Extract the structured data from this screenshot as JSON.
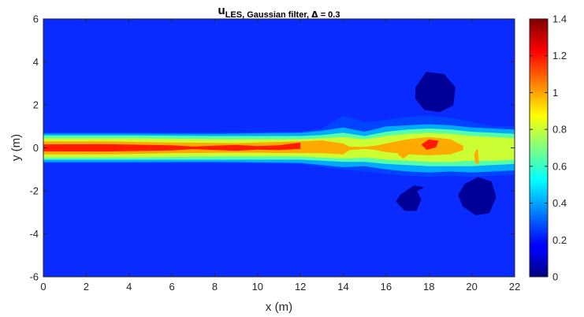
{
  "chart_data": {
    "type": "heatmap",
    "subtype": "filled-contour",
    "title": "u_{LES, Gaussian filter, Δ = 0.3}",
    "title_main": "u",
    "title_sub": "LES, Gaussian filter, ",
    "title_tail": " = 0.3",
    "title_delta": "Δ",
    "xlabel": "x (m)",
    "ylabel": "y (m)",
    "xlim": [
      0,
      22
    ],
    "ylim": [
      -6,
      6
    ],
    "x_ticks": [
      "0",
      "2",
      "4",
      "6",
      "8",
      "10",
      "12",
      "14",
      "16",
      "18",
      "20",
      "22"
    ],
    "y_ticks": [
      "-6",
      "-4",
      "-2",
      "0",
      "2",
      "4",
      "6"
    ],
    "colorbar": {
      "colormap": "jet",
      "range": [
        0,
        1.4
      ],
      "ticks": [
        "0",
        "0.2",
        "0.4",
        "0.6",
        "0.8",
        "1",
        "1.2",
        "1.4"
      ]
    },
    "background_level": 0.2,
    "levels": [
      {
        "name": "level-0.3",
        "value": 0.3,
        "color": "#0044ff",
        "top": [
          [
            0,
            0.72
          ],
          [
            4,
            0.72
          ],
          [
            8,
            0.72
          ],
          [
            12,
            0.75
          ],
          [
            13,
            0.9
          ],
          [
            14,
            1.5
          ],
          [
            15,
            1.2
          ],
          [
            16,
            1.3
          ],
          [
            17,
            1.45
          ],
          [
            18,
            1.5
          ],
          [
            19,
            1.4
          ],
          [
            20,
            1.2
          ],
          [
            21,
            1.0
          ],
          [
            22,
            1.0
          ]
        ],
        "bottom": [
          [
            0,
            -0.72
          ],
          [
            4,
            -0.72
          ],
          [
            8,
            -0.72
          ],
          [
            12,
            -0.75
          ],
          [
            13,
            -0.9
          ],
          [
            14,
            -1.0
          ],
          [
            15,
            -1.1
          ],
          [
            16,
            -1.2
          ],
          [
            17,
            -1.3
          ],
          [
            18,
            -1.35
          ],
          [
            19,
            -1.3
          ],
          [
            20,
            -1.35
          ],
          [
            21,
            -1.3
          ],
          [
            22,
            -1.25
          ]
        ]
      },
      {
        "name": "level-0.5",
        "value": 0.5,
        "color": "#00aaff",
        "top": [
          [
            0,
            0.66
          ],
          [
            4,
            0.66
          ],
          [
            8,
            0.65
          ],
          [
            12,
            0.7
          ],
          [
            13,
            0.8
          ],
          [
            14,
            0.95
          ],
          [
            15,
            0.75
          ],
          [
            16,
            1.0
          ],
          [
            17,
            1.05
          ],
          [
            18,
            1.1
          ],
          [
            19,
            1.05
          ],
          [
            20,
            0.95
          ],
          [
            21,
            0.9
          ],
          [
            22,
            0.85
          ]
        ],
        "bottom": [
          [
            0,
            -0.66
          ],
          [
            4,
            -0.66
          ],
          [
            8,
            -0.65
          ],
          [
            12,
            -0.7
          ],
          [
            13,
            -0.8
          ],
          [
            14,
            -0.9
          ],
          [
            15,
            -0.85
          ],
          [
            16,
            -1.0
          ],
          [
            17,
            -1.1
          ],
          [
            18,
            -1.15
          ],
          [
            19,
            -1.1
          ],
          [
            20,
            -1.15
          ],
          [
            21,
            -1.1
          ],
          [
            22,
            -1.05
          ]
        ]
      },
      {
        "name": "level-0.7",
        "value": 0.7,
        "color": "#55ffaa",
        "top": [
          [
            0,
            0.58
          ],
          [
            4,
            0.58
          ],
          [
            8,
            0.55
          ],
          [
            12,
            0.55
          ],
          [
            13,
            0.6
          ],
          [
            14,
            0.7
          ],
          [
            15,
            0.55
          ],
          [
            16,
            0.75
          ],
          [
            17,
            0.85
          ],
          [
            18,
            0.9
          ],
          [
            19,
            0.85
          ],
          [
            20,
            0.75
          ],
          [
            21,
            0.7
          ],
          [
            22,
            0.65
          ]
        ],
        "bottom": [
          [
            0,
            -0.55
          ],
          [
            4,
            -0.55
          ],
          [
            8,
            -0.55
          ],
          [
            12,
            -0.55
          ],
          [
            13,
            -0.6
          ],
          [
            14,
            -0.65
          ],
          [
            15,
            -0.65
          ],
          [
            16,
            -0.75
          ],
          [
            17,
            -0.8
          ],
          [
            18,
            -0.85
          ],
          [
            19,
            -0.85
          ],
          [
            20,
            -0.85
          ],
          [
            21,
            -0.8
          ],
          [
            22,
            -0.75
          ]
        ]
      },
      {
        "name": "level-0.85",
        "value": 0.85,
        "color": "#ccff33",
        "top": [
          [
            0,
            0.45
          ],
          [
            4,
            0.45
          ],
          [
            8,
            0.4
          ],
          [
            12,
            0.4
          ],
          [
            13,
            0.45
          ],
          [
            14,
            0.5
          ],
          [
            15,
            0.4
          ],
          [
            16,
            0.55
          ],
          [
            17,
            0.65
          ],
          [
            18,
            0.7
          ],
          [
            19,
            0.65
          ],
          [
            20,
            0.55
          ],
          [
            21,
            0.5
          ],
          [
            22,
            0.45
          ]
        ],
        "bottom": [
          [
            0,
            -0.45
          ],
          [
            4,
            -0.45
          ],
          [
            8,
            -0.4
          ],
          [
            12,
            -0.4
          ],
          [
            13,
            -0.45
          ],
          [
            14,
            -0.5
          ],
          [
            15,
            -0.45
          ],
          [
            16,
            -0.55
          ],
          [
            17,
            -0.6
          ],
          [
            18,
            -0.65
          ],
          [
            19,
            -0.65
          ],
          [
            20,
            -0.6
          ],
          [
            21,
            -0.6
          ],
          [
            22,
            -0.55
          ]
        ]
      },
      {
        "name": "level-1.0",
        "value": 1.0,
        "color": "#ffaa00",
        "top": [
          [
            0,
            0.3
          ],
          [
            3,
            0.3
          ],
          [
            6,
            0.25
          ],
          [
            9,
            0.22
          ],
          [
            12,
            0.3
          ],
          [
            13,
            0.35
          ],
          [
            14,
            0.2
          ],
          [
            14.3,
            0.05
          ],
          [
            15,
            0.05
          ],
          [
            15.5,
            0.1
          ],
          [
            16,
            0.2
          ],
          [
            17,
            0.4
          ],
          [
            18,
            0.5
          ],
          [
            19,
            0.4
          ],
          [
            19.6,
            0.1
          ]
        ],
        "bottom": [
          [
            0,
            -0.3
          ],
          [
            3,
            -0.3
          ],
          [
            6,
            -0.25
          ],
          [
            9,
            -0.22
          ],
          [
            12,
            -0.25
          ],
          [
            13,
            -0.25
          ],
          [
            14,
            -0.3
          ],
          [
            14.3,
            -0.1
          ],
          [
            15,
            -0.05
          ],
          [
            15.5,
            -0.1
          ],
          [
            16,
            -0.2
          ],
          [
            17,
            -0.3
          ],
          [
            18,
            -0.35
          ],
          [
            19,
            -0.3
          ],
          [
            19.6,
            -0.1
          ]
        ]
      },
      {
        "name": "level-1.2",
        "value": 1.2,
        "color": "#ff1a00",
        "top": [
          [
            0,
            0.16
          ],
          [
            3,
            0.17
          ],
          [
            6,
            0.12
          ],
          [
            7,
            0.06
          ],
          [
            8,
            0.1
          ],
          [
            9,
            0.14
          ],
          [
            10,
            0.08
          ],
          [
            11,
            0.12
          ],
          [
            12,
            0.25
          ]
        ],
        "bottom": [
          [
            0,
            -0.16
          ],
          [
            3,
            -0.17
          ],
          [
            6,
            -0.12
          ],
          [
            7,
            -0.06
          ],
          [
            8,
            -0.1
          ],
          [
            9,
            -0.14
          ],
          [
            10,
            -0.08
          ],
          [
            11,
            -0.1
          ],
          [
            12,
            -0.05
          ]
        ]
      }
    ],
    "blobs": [
      {
        "name": "low-velocity-region-upper",
        "value": 0.1,
        "color": "#000099",
        "points": [
          [
            17.4,
            2.8
          ],
          [
            17.9,
            3.5
          ],
          [
            18.7,
            3.4
          ],
          [
            19.2,
            2.8
          ],
          [
            19.1,
            2.0
          ],
          [
            18.5,
            1.7
          ],
          [
            17.8,
            1.8
          ],
          [
            17.4,
            2.3
          ]
        ]
      },
      {
        "name": "low-velocity-region-lower-left",
        "value": 0.1,
        "color": "#000099",
        "points": [
          [
            16.7,
            -2.2
          ],
          [
            17.3,
            -1.8
          ],
          [
            17.7,
            -1.85
          ],
          [
            17.4,
            -2.0
          ],
          [
            17.6,
            -2.4
          ],
          [
            17.4,
            -2.9
          ],
          [
            16.9,
            -2.9
          ],
          [
            16.5,
            -2.5
          ]
        ]
      },
      {
        "name": "low-velocity-region-lower-right",
        "value": 0.1,
        "color": "#000099",
        "points": [
          [
            19.7,
            -1.7
          ],
          [
            20.3,
            -1.4
          ],
          [
            20.9,
            -1.6
          ],
          [
            21.1,
            -2.3
          ],
          [
            20.8,
            -3.0
          ],
          [
            20.2,
            -3.1
          ],
          [
            19.6,
            -2.7
          ],
          [
            19.4,
            -2.2
          ]
        ]
      },
      {
        "name": "peak-core",
        "value": 1.3,
        "color": "#ff1a00",
        "points": [
          [
            17.7,
            0.15
          ],
          [
            18.0,
            0.35
          ],
          [
            18.4,
            0.3
          ],
          [
            18.3,
            0.05
          ],
          [
            17.9,
            -0.05
          ]
        ]
      },
      {
        "name": "orange-island",
        "value": 1.0,
        "color": "#ffaa00",
        "points": [
          [
            16.6,
            -0.3
          ],
          [
            16.8,
            -0.15
          ],
          [
            17.0,
            -0.3
          ],
          [
            16.8,
            -0.45
          ]
        ]
      },
      {
        "name": "orange-sliver",
        "value": 1.0,
        "color": "#ffaa00",
        "points": [
          [
            20.15,
            -0.3
          ],
          [
            20.25,
            -0.1
          ],
          [
            20.3,
            -0.7
          ],
          [
            20.2,
            -0.7
          ]
        ]
      }
    ]
  }
}
